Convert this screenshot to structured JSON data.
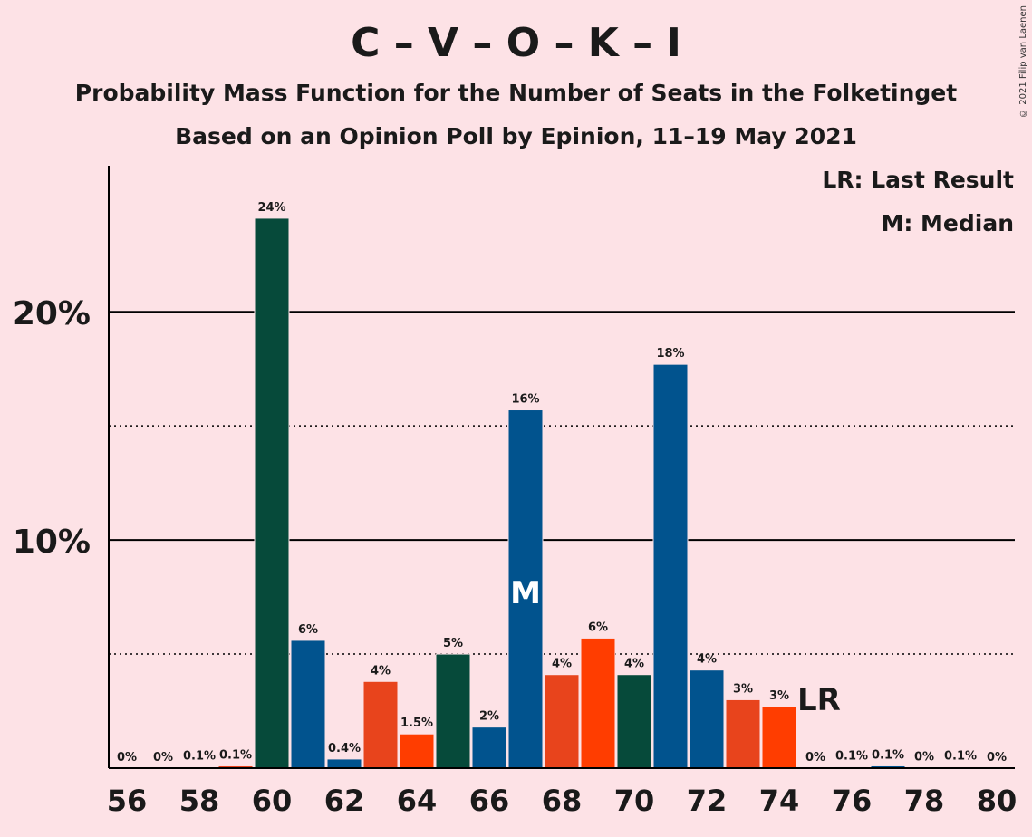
{
  "chart_data": {
    "type": "bar",
    "title": "C – V – O – K – I",
    "subtitle": "Probability Mass Function for the Number of Seats in the Folketinget",
    "subtitle2": "Based on an Opinion Poll by Epinion, 11–19 May 2021",
    "copyright": "© 2021 Filip van Laenen",
    "legend": [
      "LR: Last Result",
      "M: Median"
    ],
    "x": [
      56,
      57,
      58,
      59,
      60,
      61,
      62,
      63,
      64,
      65,
      66,
      67,
      68,
      69,
      70,
      71,
      72,
      73,
      74,
      75,
      76,
      77,
      78,
      79,
      80
    ],
    "values": [
      0,
      0,
      0.05,
      0.1,
      24.1,
      5.6,
      0.4,
      3.8,
      1.5,
      5.0,
      1.8,
      15.7,
      4.1,
      5.7,
      4.1,
      17.7,
      4.3,
      3.0,
      2.7,
      0,
      0.06,
      0.1,
      0.02,
      0.06,
      0
    ],
    "data_labels": [
      "0%",
      "0%",
      "0.1%",
      "0.1%",
      "24%",
      "6%",
      "0.4%",
      "4%",
      "1.5%",
      "5%",
      "2%",
      "16%",
      "4%",
      "6%",
      "4%",
      "18%",
      "4%",
      "3%",
      "3%",
      "0%",
      "0.1%",
      "0.1%",
      "0%",
      "0.1%",
      "0%"
    ],
    "bar_colors": [
      "#E8441C",
      "#FF3D00",
      "#E8441C",
      "#E8441C",
      "#064A3A",
      "#01538E",
      "#01538E",
      "#E8441C",
      "#FF3D00",
      "#064A3A",
      "#01538E",
      "#01538E",
      "#E8441C",
      "#FF3D00",
      "#064A3A",
      "#01538E",
      "#01538E",
      "#E8441C",
      "#FF3D00",
      "#064A3A",
      "#01538E",
      "#01538E",
      "#E8441C",
      "#FF3D00",
      "#064A3A"
    ],
    "x_tick_labels": [
      "56",
      "58",
      "60",
      "62",
      "64",
      "66",
      "68",
      "70",
      "72",
      "74",
      "76",
      "78",
      "80"
    ],
    "y_tick_labels": [
      "10%",
      "20%"
    ],
    "ylim": [
      0,
      26.4
    ],
    "grid_solid": [
      10,
      20
    ],
    "grid_dotted": [
      5,
      15
    ],
    "median": 67,
    "median_label": "M",
    "last_result": 75,
    "last_result_label": "LR",
    "legend_position": "top-right"
  }
}
